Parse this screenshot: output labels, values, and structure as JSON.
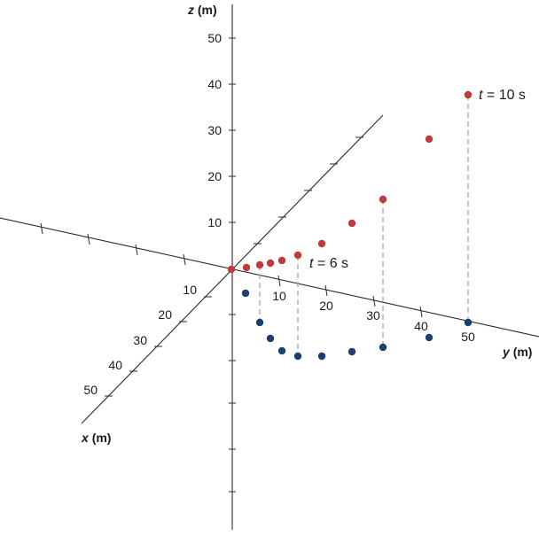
{
  "colors": {
    "axis": "#2b2b2b",
    "upper_points": "#c0393b",
    "lower_points": "#1b3f6e",
    "drop_lines": "#a8a8a8"
  },
  "axes": {
    "x": {
      "name": "x",
      "unit": "(m)",
      "ticks": [
        "10",
        "20",
        "30",
        "40",
        "50"
      ]
    },
    "y": {
      "name": "y",
      "unit": "(m)",
      "ticks": [
        "10",
        "20",
        "30",
        "40",
        "50"
      ]
    },
    "z": {
      "name": "z",
      "unit": "(m)",
      "ticks": [
        "10",
        "20",
        "30",
        "40",
        "50"
      ]
    }
  },
  "annotations": [
    {
      "var": "t",
      "rest": " = 6 s"
    },
    {
      "var": "t",
      "rest": " = 10 s"
    }
  ]
}
